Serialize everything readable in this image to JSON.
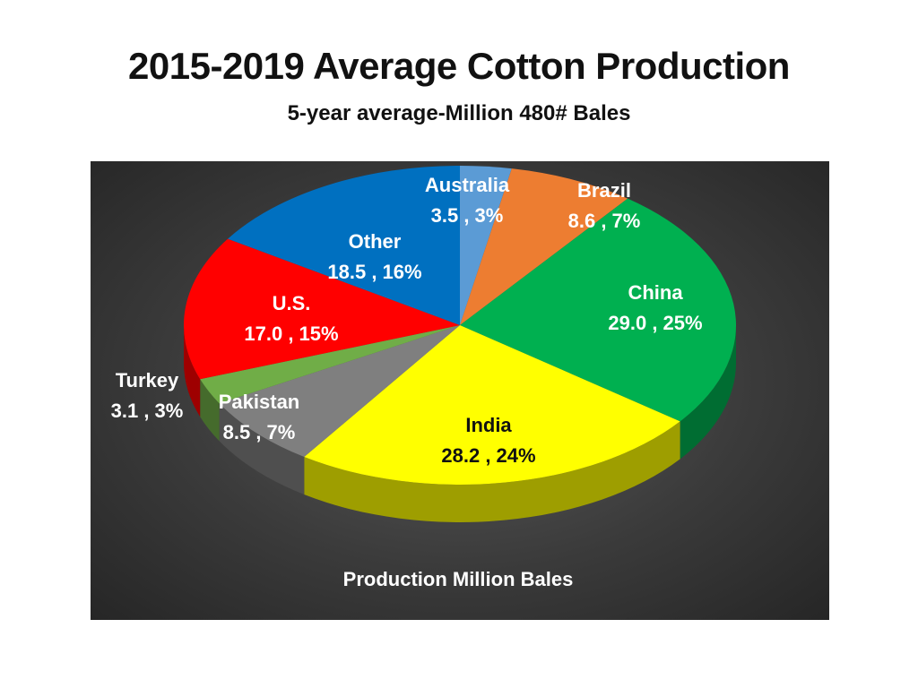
{
  "title": "2015-2019 Average Cotton Production",
  "subtitle": "5-year average-Million 480# Bales",
  "chart_data": {
    "type": "pie",
    "title": "Production Million Bales",
    "style": "3d-exploded-none",
    "unit": "Million 480# Bales",
    "slices": [
      {
        "name": "Australia",
        "value": 3.5,
        "percent": 3,
        "label": "3.5 , 3%",
        "color": "#5b9bd5"
      },
      {
        "name": "Brazil",
        "value": 8.6,
        "percent": 7,
        "label": "8.6 , 7%",
        "color": "#ed7d31"
      },
      {
        "name": "China",
        "value": 29.0,
        "percent": 25,
        "label": "29.0 , 25%",
        "color": "#00b050"
      },
      {
        "name": "India",
        "value": 28.2,
        "percent": 24,
        "label": "28.2 , 24%",
        "color": "#ffff00"
      },
      {
        "name": "Pakistan",
        "value": 8.5,
        "percent": 7,
        "label": "8.5 , 7%",
        "color": "#7f7f7f"
      },
      {
        "name": "Turkey",
        "value": 3.1,
        "percent": 3,
        "label": "3.1 , 3%",
        "color": "#70ad47"
      },
      {
        "name": "U.S.",
        "value": 17.0,
        "percent": 15,
        "label": "17.0 , 15%",
        "color": "#ff0000"
      },
      {
        "name": "Other",
        "value": 18.5,
        "percent": 16,
        "label": "18.5 , 16%",
        "color": "#0070c0"
      }
    ]
  }
}
